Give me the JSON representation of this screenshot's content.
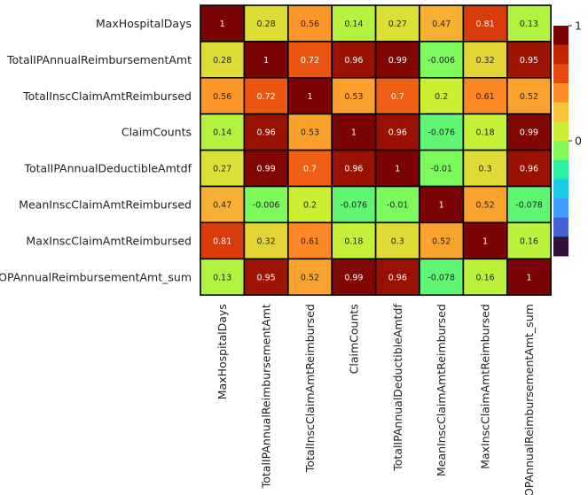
{
  "chart_data": {
    "type": "heatmap",
    "title": "",
    "xlabel": "",
    "ylabel": "",
    "row_labels": [
      "MaxHospitalDays",
      "TotalIPAnnualReimbursementAmt",
      "TotalInscClaimAmtReimbursed",
      "ClaimCounts",
      "TotalIPAnnualDeductibleAmtdf",
      "MeanInscClaimAmtReimbursed",
      "MaxInscClaimAmtReimbursed",
      "OPAnnualReimbursementAmt_sum"
    ],
    "col_labels": [
      "MaxHospitalDays",
      "TotalIPAnnualReimbursementAmt",
      "TotalInscClaimAmtReimbursed",
      "ClaimCounts",
      "TotalIPAnnualDeductibleAmtdf",
      "MeanInscClaimAmtReimbursed",
      "MaxInscClaimAmtReimbursed",
      "OPAnnualReimbursementAmt_sum"
    ],
    "values": [
      [
        1,
        0.28,
        0.56,
        0.14,
        0.27,
        0.47,
        0.81,
        0.13
      ],
      [
        0.28,
        1,
        0.72,
        0.96,
        0.99,
        -0.006,
        0.32,
        0.95
      ],
      [
        0.56,
        0.72,
        1,
        0.53,
        0.7,
        0.2,
        0.61,
        0.52
      ],
      [
        0.14,
        0.96,
        0.53,
        1,
        0.96,
        -0.076,
        0.18,
        0.99
      ],
      [
        0.27,
        0.99,
        0.7,
        0.96,
        1,
        -0.01,
        0.3,
        0.96
      ],
      [
        0.47,
        -0.006,
        0.2,
        -0.076,
        -0.01,
        1,
        0.52,
        -0.078
      ],
      [
        0.81,
        0.32,
        0.61,
        0.18,
        0.3,
        0.52,
        1,
        0.16
      ],
      [
        0.13,
        0.95,
        0.52,
        0.99,
        0.96,
        -0.078,
        0.16,
        1
      ]
    ],
    "labels": [
      [
        "1",
        "0.28",
        "0.56",
        "0.14",
        "0.27",
        "0.47",
        "0.81",
        "0.13"
      ],
      [
        "0.28",
        "1",
        "0.72",
        "0.96",
        "0.99",
        "-0.006",
        "0.32",
        "0.95"
      ],
      [
        "0.56",
        "0.72",
        "1",
        "0.53",
        "0.7",
        "0.2",
        "0.61",
        "0.52"
      ],
      [
        "0.14",
        "0.96",
        "0.53",
        "1",
        "0.96",
        "-0.076",
        "0.18",
        "0.99"
      ],
      [
        "0.27",
        "0.99",
        "0.7",
        "0.96",
        "1",
        "-0.01",
        "0.3",
        "0.96"
      ],
      [
        "0.47",
        "-0.006",
        "0.2",
        "-0.076",
        "-0.01",
        "1",
        "0.52",
        "-0.078"
      ],
      [
        "0.81",
        "0.32",
        "0.61",
        "0.18",
        "0.3",
        "0.52",
        "1",
        "0.16"
      ],
      [
        "0.13",
        "0.95",
        "0.52",
        "0.99",
        "0.96",
        "-0.078",
        "0.16",
        "1"
      ]
    ],
    "colorbar": {
      "range": [
        -1,
        1
      ],
      "ticks": [
        1,
        0
      ],
      "tick_labels": [
        "1",
        "0"
      ],
      "colors_top_to_bottom": [
        "#7a0403",
        "#c42503",
        "#e8490f",
        "#fc8c25",
        "#f5c43a",
        "#cbef33",
        "#80fa5a",
        "#2bf09d",
        "#1bcde6",
        "#3e9dfe",
        "#4661d6",
        "#30123b"
      ]
    },
    "grid": false,
    "legend": "right"
  }
}
